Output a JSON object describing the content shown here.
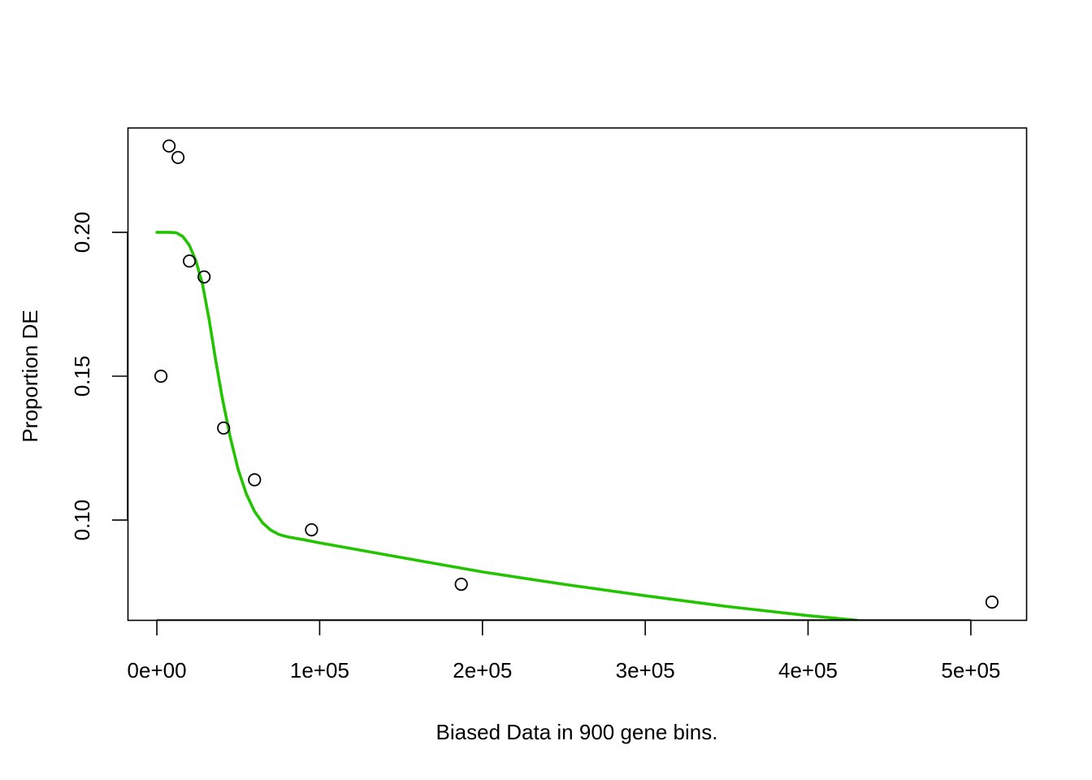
{
  "chart_data": {
    "type": "scatter",
    "title": "",
    "xlabel": "Biased Data in 900 gene bins.",
    "ylabel": "Proportion DE",
    "xlim": [
      -18000,
      534000
    ],
    "ylim": [
      0.0653,
      0.2364
    ],
    "grid": false,
    "legend": null,
    "x_ticks": [
      0,
      100000,
      200000,
      300000,
      400000,
      500000
    ],
    "x_tick_labels": [
      "0e+00",
      "1e+05",
      "2e+05",
      "3e+05",
      "4e+05",
      "5e+05"
    ],
    "y_ticks": [
      0.1,
      0.15,
      0.2
    ],
    "y_tick_labels": [
      "0.10",
      "0.15",
      "0.20"
    ],
    "series": [
      {
        "name": "points",
        "kind": "scatter",
        "marker": "open-circle",
        "color": "#000000",
        "x": [
          2500,
          7500,
          13000,
          20000,
          29000,
          41000,
          60000,
          95000,
          187000,
          513000
        ],
        "y": [
          0.15,
          0.23,
          0.226,
          0.19,
          0.1845,
          0.132,
          0.114,
          0.0966,
          0.0777,
          0.0715
        ]
      },
      {
        "name": "fitted curve",
        "kind": "line",
        "color": "#22c400",
        "x": [
          0,
          8000,
          12000,
          16000,
          20000,
          24000,
          28000,
          32000,
          36000,
          40000,
          45000,
          50000,
          55000,
          60000,
          65000,
          70000,
          75000,
          80000,
          90000,
          100000,
          150000,
          200000,
          250000,
          300000,
          350000,
          400000,
          430000
        ],
        "y": [
          0.2,
          0.2,
          0.1998,
          0.1985,
          0.1955,
          0.19,
          0.182,
          0.17,
          0.156,
          0.143,
          0.129,
          0.1175,
          0.109,
          0.103,
          0.099,
          0.0965,
          0.095,
          0.0942,
          0.0932,
          0.0921,
          0.087,
          0.082,
          0.0777,
          0.0737,
          0.07,
          0.0668,
          0.0652
        ]
      }
    ]
  }
}
